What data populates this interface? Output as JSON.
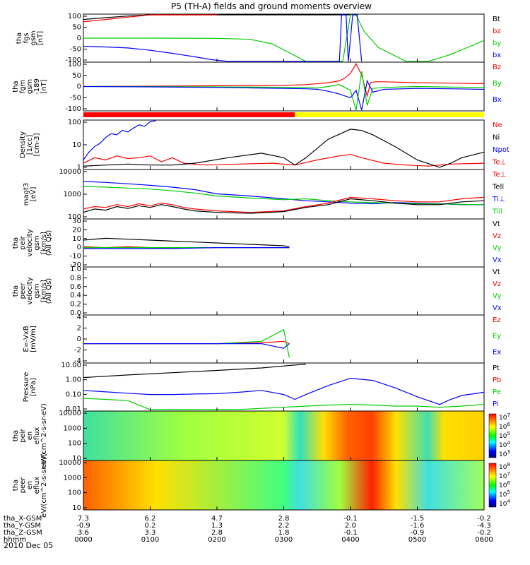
{
  "title": "P5 (TH-A) fields and ground moments overview",
  "date_label": "2010 Dec 05",
  "time_axis": {
    "row_labels": [
      "tha_X-GSM",
      "tha_Y-GSM",
      "tha_Z-GSM",
      "hhmm"
    ],
    "columns": [
      {
        "t": 0,
        "values": [
          "7.3",
          "-0.9",
          "3.6",
          "0000"
        ]
      },
      {
        "t": 60,
        "values": [
          "6.2",
          "0.2",
          "3.3",
          "0100"
        ]
      },
      {
        "t": 120,
        "values": [
          "4.7",
          "1.3",
          "2.8",
          "0200"
        ]
      },
      {
        "t": 180,
        "values": [
          "2.8",
          "2.2",
          "1.8",
          "0300"
        ]
      },
      {
        "t": 240,
        "values": [
          "-0.1",
          "2.0",
          "-0.1",
          "0400"
        ]
      },
      {
        "t": 300,
        "values": [
          "-1.5",
          "-1.6",
          "-0.9",
          "0500"
        ]
      },
      {
        "t": 360,
        "values": [
          "-0.2",
          "-4.3",
          "-0.2",
          "0600"
        ]
      }
    ]
  },
  "state_bar": {
    "segments": [
      {
        "start": 0,
        "end": 190,
        "color": "#ff0000"
      },
      {
        "start": 190,
        "end": 360,
        "color": "#ffff00"
      }
    ]
  },
  "colorbars": [
    {
      "labels": [
        "10^7",
        "10^6",
        "10^5",
        "10^4",
        "10^3"
      ]
    },
    {
      "labels": [
        "10^8",
        "10^7",
        "10^6",
        "10^5",
        "10^4"
      ]
    }
  ],
  "chart_data": [
    {
      "type": "line",
      "ylabel": "tha fgs gsm [nT]",
      "yticks": [
        "100",
        "50",
        "0",
        "-50",
        "-100"
      ],
      "ylim": [
        -100,
        100
      ],
      "legend": [
        "Bt",
        "bz",
        "by",
        "bx"
      ],
      "series": [
        {
          "name": "Bt",
          "color": "#000000",
          "x": [
            0,
            20,
            40,
            60,
            80,
            100,
            120,
            140,
            180,
            200,
            240
          ],
          "y": [
            80,
            88,
            95,
            100,
            100,
            100,
            100,
            100,
            100,
            100,
            100
          ]
        },
        {
          "name": "bz",
          "color": "#ff0000",
          "x": [
            0,
            20,
            40,
            60,
            80,
            100,
            120
          ],
          "y": [
            70,
            80,
            90,
            100,
            100,
            100,
            100
          ]
        },
        {
          "name": "by",
          "color": "#00cc00",
          "x": [
            0,
            60,
            120,
            150,
            170,
            180,
            190,
            200,
            210,
            218,
            225,
            233,
            240,
            245,
            252,
            265,
            290,
            310,
            330,
            350,
            360
          ],
          "y": [
            0,
            0,
            -1,
            -5,
            -25,
            -50,
            -75,
            -100,
            -100,
            -100,
            -100,
            -100,
            100,
            100,
            30,
            -40,
            -100,
            -100,
            -70,
            -30,
            -10
          ]
        },
        {
          "name": "bx",
          "color": "#0000ff",
          "x": [
            0,
            20,
            40,
            60,
            80,
            100,
            115,
            130,
            230,
            232,
            236,
            238,
            242,
            246,
            250
          ],
          "y": [
            -35,
            -38,
            -42,
            -52,
            -65,
            -80,
            -92,
            -100,
            -100,
            100,
            100,
            -100,
            100,
            100,
            -100
          ]
        }
      ]
    },
    {
      "type": "line",
      "ylabel": "tha fgm gsm -189 [nT]",
      "yticks": [
        "100",
        "50",
        "0",
        "-50",
        "-100"
      ],
      "ylim": [
        -125,
        125
      ],
      "legend": [
        "Bz",
        "By",
        "Bx"
      ],
      "series": [
        {
          "name": "Bz",
          "color": "#ff0000",
          "x": [
            0,
            60,
            120,
            180,
            200,
            220,
            230,
            235,
            240,
            245,
            250,
            255,
            258,
            262,
            270,
            300,
            330,
            360
          ],
          "y": [
            0,
            2,
            4,
            6,
            10,
            20,
            30,
            45,
            70,
            120,
            60,
            -50,
            20,
            25,
            25,
            20,
            18,
            15
          ]
        },
        {
          "name": "By",
          "color": "#00cc00",
          "x": [
            0,
            60,
            120,
            180,
            200,
            210,
            220,
            230,
            240,
            245,
            250,
            255,
            260,
            270,
            300,
            330,
            360
          ],
          "y": [
            0,
            0,
            -2,
            -4,
            -5,
            -8,
            0,
            10,
            -20,
            -125,
            80,
            -100,
            -10,
            -5,
            0,
            -3,
            -5
          ]
        },
        {
          "name": "Bx",
          "color": "#0000ff",
          "x": [
            0,
            60,
            120,
            180,
            200,
            210,
            220,
            230,
            240,
            245,
            250,
            255,
            260,
            270,
            300,
            330,
            360
          ],
          "y": [
            0,
            -2,
            -5,
            -10,
            -12,
            -15,
            -25,
            -40,
            -60,
            -20,
            -125,
            30,
            -30,
            -15,
            -10,
            -12,
            -15
          ]
        }
      ]
    },
    {
      "type": "line",
      "ylabel": "Density [1/cc] [cm-3]",
      "log": true,
      "yticks": [
        "100",
        "10",
        "1"
      ],
      "ylim": [
        0.5,
        200
      ],
      "legend": [
        "Ne",
        "Ni",
        "Npot",
        "Te⊥"
      ],
      "series": [
        {
          "name": "Ne",
          "color": "#ff0000",
          "x": [
            0,
            10,
            20,
            30,
            40,
            50,
            60,
            70,
            80,
            90,
            110,
            140,
            170,
            190,
            210,
            230,
            240,
            250,
            270,
            290,
            310,
            330,
            360
          ],
          "y": [
            1,
            2,
            1.5,
            2.5,
            1.8,
            2,
            2.5,
            1.2,
            2,
            1,
            0.8,
            0.9,
            1,
            0.8,
            1.5,
            2.5,
            3,
            2,
            1,
            0.8,
            0.7,
            0.9,
            1
          ]
        },
        {
          "name": "Ni",
          "color": "#000000",
          "x": [
            0,
            20,
            40,
            60,
            80,
            100,
            130,
            160,
            180,
            190,
            200,
            220,
            240,
            250,
            260,
            280,
            300,
            320,
            330,
            340,
            360
          ],
          "y": [
            0.7,
            0.8,
            0.9,
            0.8,
            0.8,
            1,
            2,
            3.5,
            2,
            0.8,
            2,
            20,
            70,
            60,
            35,
            8,
            1.5,
            0.6,
            1,
            2,
            4
          ]
        },
        {
          "name": "Npot",
          "color": "#0000ff",
          "x": [
            0,
            5,
            10,
            15,
            20,
            25,
            30,
            35,
            40,
            45,
            50,
            55,
            60,
            65
          ],
          "y": [
            1.5,
            4,
            8,
            12,
            25,
            40,
            35,
            60,
            50,
            80,
            120,
            100,
            180,
            200
          ]
        }
      ]
    },
    {
      "type": "line",
      "ylabel": "magt3 [eV]",
      "log": true,
      "yticks": [
        "10000",
        "1000",
        "100"
      ],
      "ylim": [
        50,
        15000
      ],
      "legend": [
        "Te⊥",
        "Tell",
        "Ti⊥",
        "Till"
      ],
      "series": [
        {
          "name": "Te⊥",
          "color": "#0000ff",
          "x": [
            0,
            20,
            40,
            60,
            80,
            100,
            120,
            150,
            180,
            200,
            220,
            240,
            260,
            280,
            300,
            320,
            340,
            360
          ],
          "y": [
            4000,
            3500,
            3000,
            2500,
            2000,
            1500,
            900,
            700,
            500,
            400,
            350,
            300,
            280,
            320,
            300,
            280,
            250,
            250
          ]
        },
        {
          "name": "Till",
          "color": "#00cc00",
          "x": [
            0,
            20,
            40,
            60,
            80,
            100,
            120,
            150,
            180,
            200,
            220,
            240,
            260,
            280,
            300,
            320,
            340,
            360
          ],
          "y": [
            2200,
            2000,
            1800,
            1600,
            1300,
            1000,
            700,
            550,
            450,
            500,
            400,
            350,
            320,
            300,
            280,
            270,
            260,
            250
          ]
        },
        {
          "name": "Ti⊥",
          "color": "#ff0000",
          "x": [
            0,
            10,
            20,
            30,
            40,
            50,
            60,
            70,
            80,
            90,
            100,
            120,
            150,
            180,
            200,
            220,
            240,
            260,
            280,
            300,
            320,
            340,
            360
          ],
          "y": [
            150,
            200,
            180,
            250,
            200,
            280,
            220,
            300,
            250,
            180,
            150,
            120,
            100,
            120,
            200,
            300,
            600,
            500,
            400,
            350,
            350,
            500,
            600
          ]
        },
        {
          "name": "Tell",
          "color": "#000000",
          "x": [
            0,
            10,
            20,
            30,
            40,
            50,
            60,
            70,
            80,
            90,
            100,
            120,
            150,
            180,
            200,
            220,
            240,
            260,
            280,
            300,
            320,
            340,
            360
          ],
          "y": [
            100,
            150,
            130,
            200,
            160,
            220,
            180,
            250,
            200,
            150,
            120,
            100,
            90,
            110,
            180,
            250,
            500,
            400,
            300,
            250,
            250,
            350,
            400
          ]
        }
      ]
    },
    {
      "type": "line",
      "ylabel": "tha peir velocity gsm [km/s]",
      "extra_label": "(All Qs)",
      "yticks": [
        "30",
        "20",
        "10",
        "0",
        "-10",
        "-20"
      ],
      "ylim": [
        -20,
        30
      ],
      "legend": [
        "Vt",
        "Vz",
        "Vy",
        "Vx"
      ],
      "series": [
        {
          "name": "Vt",
          "color": "#000000",
          "x": [
            0,
            20,
            40,
            60,
            80,
            100,
            120,
            140,
            160,
            180,
            185
          ],
          "y": [
            8,
            10,
            9,
            8,
            7,
            6,
            5,
            4,
            3,
            2,
            1
          ]
        },
        {
          "name": "Vz",
          "color": "#ff0000",
          "x": [
            0,
            20,
            40,
            60,
            80,
            100,
            120,
            140,
            160,
            180,
            185
          ],
          "y": [
            1,
            0,
            1,
            0,
            -1,
            0,
            0,
            0,
            0,
            0,
            0
          ]
        },
        {
          "name": "Vy",
          "color": "#00cc00",
          "x": [
            0,
            40,
            80,
            120,
            160,
            185
          ],
          "y": [
            0,
            0,
            0,
            0,
            0,
            0
          ]
        },
        {
          "name": "Vx",
          "color": "#0000ff",
          "x": [
            0,
            40,
            80,
            120,
            160,
            185
          ],
          "y": [
            -1,
            -1,
            -1,
            0,
            0,
            0
          ]
        }
      ]
    },
    {
      "type": "line",
      "ylabel": "tha peer velocity gsm [km/s]",
      "extra_label": "(All Qs)",
      "yticks": [
        "1.0",
        "0.8",
        "0.6",
        "0.4",
        "0.2",
        "0.0"
      ],
      "ylim": [
        0,
        1
      ],
      "legend": [
        "Vt",
        "Vz",
        "Vy",
        "Vx"
      ],
      "series": []
    },
    {
      "type": "line",
      "ylabel": "E=-VxB [mV/m]",
      "yticks": [
        "4",
        "2",
        "0",
        "-2",
        "-4"
      ],
      "ylim": [
        -4,
        6
      ],
      "legend": [
        "Ez",
        "Ey",
        "Ex"
      ],
      "series": [
        {
          "name": "Ez",
          "color": "#ff0000",
          "x": [
            0,
            40,
            80,
            120,
            160,
            180,
            185
          ],
          "y": [
            0,
            0,
            0,
            0,
            0.2,
            0.5,
            0
          ]
        },
        {
          "name": "Ey",
          "color": "#00cc00",
          "x": [
            0,
            40,
            80,
            120,
            160,
            180,
            185
          ],
          "y": [
            0,
            0,
            0,
            0,
            0.5,
            3,
            -3
          ]
        },
        {
          "name": "Ex",
          "color": "#0000ff",
          "x": [
            0,
            40,
            80,
            120,
            160,
            180,
            185
          ],
          "y": [
            0,
            0,
            0,
            0,
            0,
            -1,
            0
          ]
        }
      ]
    },
    {
      "type": "line",
      "ylabel": "Pressure [nPa]",
      "log": true,
      "yticks": [
        "10.00",
        "1.00",
        "0.10",
        "0.01"
      ],
      "ylim": [
        0.007,
        30
      ],
      "legend": [
        "Pt",
        "Pb",
        "Pe",
        "Pi"
      ],
      "series": [
        {
          "name": "Pt",
          "color": "#000000",
          "x": [
            0,
            40,
            80,
            120,
            160,
            180,
            200
          ],
          "y": [
            2.5,
            4,
            6,
            9,
            14,
            20,
            28
          ]
        },
        {
          "name": "Pi",
          "color": "#0000ff",
          "x": [
            0,
            40,
            60,
            80,
            100,
            120,
            140,
            160,
            180,
            190,
            200,
            220,
            240,
            260,
            280,
            300,
            320,
            330,
            340,
            360
          ],
          "y": [
            0.25,
            0.15,
            0.12,
            0.12,
            0.13,
            0.14,
            0.18,
            0.25,
            0.12,
            0.05,
            0.12,
            0.6,
            2.2,
            1.5,
            0.4,
            0.08,
            0.02,
            0.05,
            0.1,
            0.18
          ]
        },
        {
          "name": "Pe",
          "color": "#00cc00",
          "x": [
            0,
            20,
            40,
            60,
            80,
            100,
            120,
            140,
            160,
            180,
            200,
            220,
            240,
            260,
            280,
            300,
            320,
            340,
            360
          ],
          "y": [
            0.06,
            0.05,
            0.04,
            0.008,
            0.008,
            0.008,
            0.008,
            0.008,
            0.01,
            0.012,
            0.015,
            0.018,
            0.02,
            0.018,
            0.015,
            0.015,
            0.012,
            0.015,
            0.02
          ]
        }
      ]
    },
    {
      "type": "heatmap",
      "ylabel": "tha peir en eflux eV/(cm^2-s-sr-eV)",
      "yticks": [
        "10000",
        "1000",
        "100",
        "10"
      ],
      "colorbar": "colorbars.0"
    },
    {
      "type": "heatmap",
      "ylabel": "tha peer en eflux eV/(cm^2-s-sr-eV)",
      "yticks": [
        "10000",
        "1000",
        "100",
        "10"
      ],
      "colorbar": "colorbars.1"
    }
  ]
}
